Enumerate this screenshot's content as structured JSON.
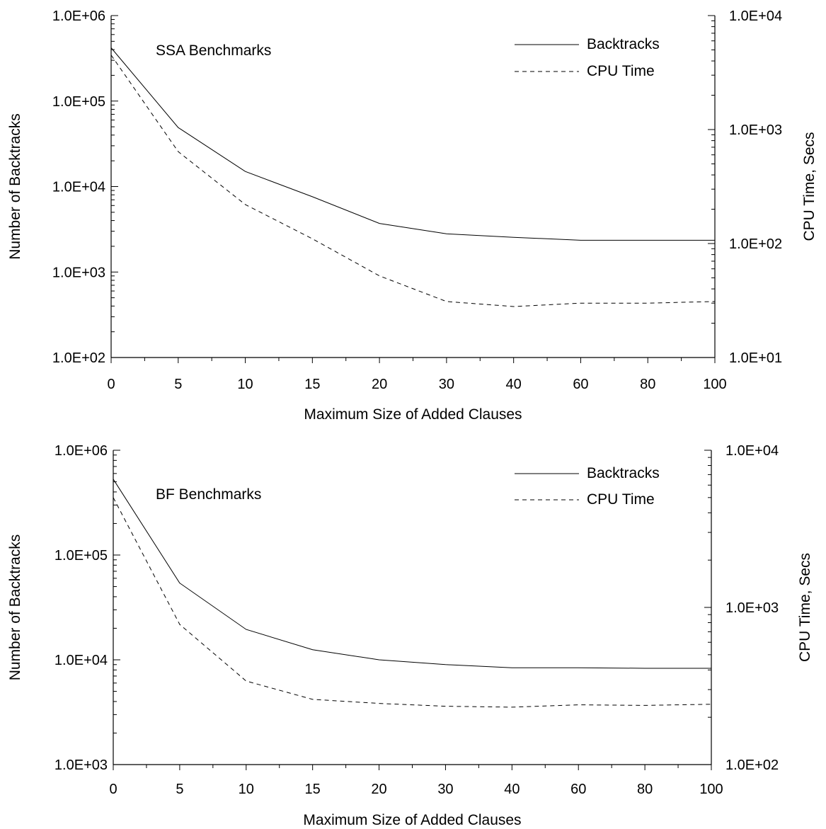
{
  "chart_data": [
    {
      "type": "line",
      "annotation": "SSA Benchmarks",
      "xlabel": "Maximum Size of Added Clauses",
      "ylabel": "Number of Backtracks",
      "y2label": "CPU Time, Secs",
      "categories": [
        "0",
        "5",
        "10",
        "15",
        "20",
        "30",
        "40",
        "60",
        "80",
        "100"
      ],
      "y_scale": "log",
      "ylim": [
        100,
        1000000
      ],
      "y2lim": [
        10,
        10000
      ],
      "y_ticks": [
        "1.0E+02",
        "1.0E+03",
        "1.0E+04",
        "1.0E+05",
        "1.0E+06"
      ],
      "y2_ticks": [
        "1.0E+01",
        "1.0E+02",
        "1.0E+03",
        "1.0E+04"
      ],
      "legend": "top-right",
      "series": [
        {
          "name": "Backtracks",
          "axis": "left",
          "style": "solid",
          "values": [
            420000,
            49000,
            15000,
            7600,
            3700,
            2800,
            2550,
            2350,
            2350,
            2350
          ]
        },
        {
          "name": "CPU Time",
          "axis": "right",
          "style": "dashed",
          "values": [
            4500,
            640,
            220,
            110,
            52,
            31,
            28,
            30,
            30,
            31
          ]
        }
      ]
    },
    {
      "type": "line",
      "annotation": "BF Benchmarks",
      "xlabel": "Maximum Size of Added Clauses",
      "ylabel": "Number of Backtracks",
      "y2label": "CPU Time, Secs",
      "categories": [
        "0",
        "5",
        "10",
        "15",
        "20",
        "30",
        "40",
        "60",
        "80",
        "100"
      ],
      "y_scale": "log",
      "ylim": [
        1000,
        1000000
      ],
      "y2lim": [
        100,
        10000
      ],
      "y_ticks": [
        "1.0E+03",
        "1.0E+04",
        "1.0E+05",
        "1.0E+06"
      ],
      "y2_ticks": [
        "1.0E+02",
        "1.0E+03",
        "1.0E+04"
      ],
      "legend": "top-right",
      "series": [
        {
          "name": "Backtracks",
          "axis": "left",
          "style": "solid",
          "values": [
            530000,
            54000,
            19500,
            12500,
            10000,
            9000,
            8400,
            8400,
            8300,
            8300
          ]
        },
        {
          "name": "CPU Time",
          "axis": "right",
          "style": "dashed",
          "values": [
            5000,
            780,
            340,
            260,
            245,
            235,
            232,
            240,
            238,
            242
          ]
        }
      ]
    }
  ]
}
